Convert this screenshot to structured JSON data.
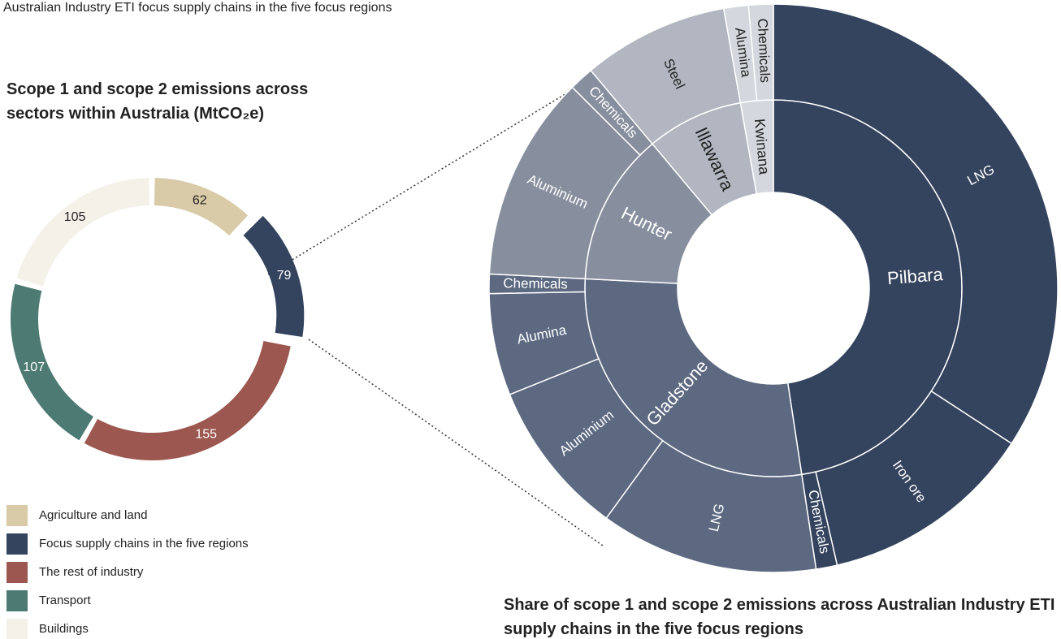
{
  "header": {
    "title": "Australian Industry ETI focus supply chains in the five focus regions"
  },
  "chart_data": [
    {
      "type": "donut",
      "title": "Scope 1 and scope 2 emissions across sectors within Australia (MtCO₂e)",
      "categories": [
        "Agriculture and land",
        "Focus supply chains in the five regions",
        "The rest of industry",
        "Transport",
        "Buildings"
      ],
      "values": [
        62,
        79,
        155,
        107,
        105
      ],
      "colors": [
        "#d9caa8",
        "#34435e",
        "#9b5750",
        "#4d7a72",
        "#f4f1e9"
      ],
      "exploded": "Focus supply chains in the five regions"
    },
    {
      "type": "sunburst",
      "title": "Share of scope 1 and scope 2 emissions across Australian Industry ETI supply chains in the five focus regions",
      "series": [
        {
          "name": "Pilbara",
          "color": "#34435e",
          "categories": [
            "LNG",
            "Iron ore",
            "Chemicals"
          ],
          "values": [
            34.2,
            12.2,
            1.2
          ]
        },
        {
          "name": "Gladstone",
          "color": "#5c6981",
          "categories": [
            "LNG",
            "Aluminium",
            "Alumina",
            "Chemicals"
          ],
          "values": [
            12.4,
            8.9,
            5.8,
            1.1
          ]
        },
        {
          "name": "Hunter",
          "color": "#878f9e",
          "categories": [
            "Aluminium",
            "Chemicals"
          ],
          "values": [
            11.7,
            1.4
          ]
        },
        {
          "name": "Illawarra",
          "color": "#b1b6c0",
          "categories": [
            "Steel"
          ],
          "values": [
            8.3
          ]
        },
        {
          "name": "Kwinana",
          "color": "#d4d7dd",
          "categories": [
            "Alumina",
            "Chemicals"
          ],
          "values": [
            1.4,
            1.4
          ]
        }
      ]
    }
  ]
}
